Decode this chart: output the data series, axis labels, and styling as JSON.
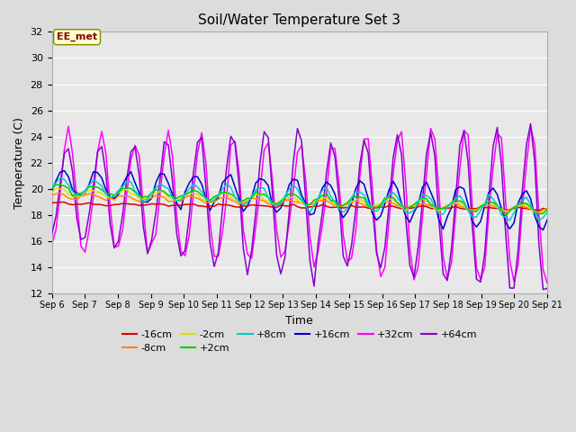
{
  "title": "Soil/Water Temperature Set 3",
  "xlabel": "Time",
  "ylabel": "Temperature (C)",
  "ylim": [
    12,
    32
  ],
  "yticks": [
    12,
    14,
    16,
    18,
    20,
    22,
    24,
    26,
    28,
    30,
    32
  ],
  "background_color": "#dcdcdc",
  "plot_bg_color": "#e8e8e8",
  "series_colors": {
    "-16cm": "#dd0000",
    "-8cm": "#ff8800",
    "-2cm": "#dddd00",
    "+2cm": "#00cc00",
    "+8cm": "#00cccc",
    "+16cm": "#0000cc",
    "+32cm": "#ff00ff",
    "+64cm": "#8800cc"
  },
  "grid_color": "#ffffff",
  "annotation_text": "EE_met",
  "annotation_facecolor": "#ffffcc",
  "annotation_edgecolor": "#888800",
  "annotation_textcolor": "#880000"
}
